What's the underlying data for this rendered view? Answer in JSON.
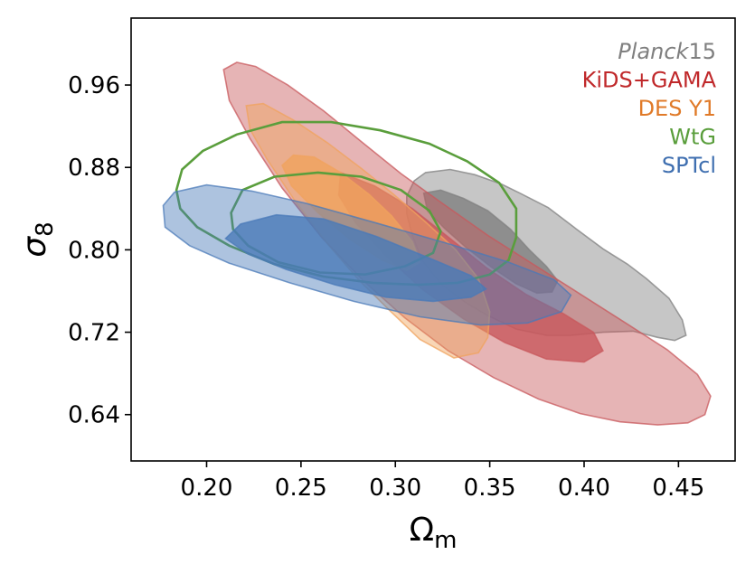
{
  "chart_data": {
    "type": "contour",
    "xlabel": "Ω",
    "xlabel_sub": "m",
    "ylabel": "σ",
    "ylabel_sub": "8",
    "xlim": [
      0.16,
      0.48
    ],
    "ylim": [
      0.595,
      1.025
    ],
    "xticks": [
      0.2,
      0.25,
      0.3,
      0.35,
      0.4,
      0.45
    ],
    "xtick_labels": [
      "0.20",
      "0.25",
      "0.30",
      "0.35",
      "0.40",
      "0.45"
    ],
    "yticks": [
      0.64,
      0.72,
      0.8,
      0.88,
      0.96
    ],
    "ytick_labels": [
      "0.64",
      "0.72",
      "0.80",
      "0.88",
      "0.96"
    ],
    "grid": false,
    "legend_position": "top-right",
    "series": [
      {
        "name": "Planck15",
        "italic_part": "Planck",
        "suffix": "15",
        "color": "#808080",
        "label_color": "#7f7f7f",
        "filled": true,
        "contours": [
          {
            "level": "95%",
            "points": [
              [
                0.31,
                0.867
              ],
              [
                0.316,
                0.875
              ],
              [
                0.329,
                0.878
              ],
              [
                0.342,
                0.873
              ],
              [
                0.356,
                0.864
              ],
              [
                0.366,
                0.855
              ],
              [
                0.381,
                0.841
              ],
              [
                0.396,
                0.82
              ],
              [
                0.41,
                0.801
              ],
              [
                0.423,
                0.786
              ],
              [
                0.433,
                0.772
              ],
              [
                0.445,
                0.753
              ],
              [
                0.452,
                0.732
              ],
              [
                0.454,
                0.717
              ],
              [
                0.448,
                0.712
              ],
              [
                0.439,
                0.715
              ],
              [
                0.426,
                0.721
              ],
              [
                0.41,
                0.72
              ],
              [
                0.393,
                0.717
              ],
              [
                0.38,
                0.717
              ],
              [
                0.364,
                0.723
              ],
              [
                0.348,
                0.737
              ],
              [
                0.337,
                0.749
              ],
              [
                0.324,
                0.767
              ],
              [
                0.314,
                0.79
              ],
              [
                0.309,
                0.814
              ],
              [
                0.306,
                0.835
              ],
              [
                0.306,
                0.852
              ],
              [
                0.31,
                0.867
              ]
            ]
          },
          {
            "level": "68%",
            "points": [
              [
                0.315,
                0.855
              ],
              [
                0.324,
                0.858
              ],
              [
                0.336,
                0.85
              ],
              [
                0.349,
                0.838
              ],
              [
                0.361,
                0.82
              ],
              [
                0.371,
                0.8
              ],
              [
                0.38,
                0.784
              ],
              [
                0.386,
                0.77
              ],
              [
                0.383,
                0.759
              ],
              [
                0.375,
                0.758
              ],
              [
                0.364,
                0.767
              ],
              [
                0.351,
                0.783
              ],
              [
                0.337,
                0.803
              ],
              [
                0.326,
                0.821
              ],
              [
                0.317,
                0.838
              ],
              [
                0.315,
                0.855
              ]
            ]
          }
        ]
      },
      {
        "name": "KiDS+GAMA",
        "color": "#c8585c",
        "label_color": "#c0292b",
        "filled": true,
        "contours": [
          {
            "level": "95%",
            "points": [
              [
                0.209,
                0.975
              ],
              [
                0.216,
                0.982
              ],
              [
                0.226,
                0.978
              ],
              [
                0.243,
                0.96
              ],
              [
                0.262,
                0.935
              ],
              [
                0.282,
                0.905
              ],
              [
                0.303,
                0.874
              ],
              [
                0.325,
                0.845
              ],
              [
                0.349,
                0.814
              ],
              [
                0.373,
                0.786
              ],
              [
                0.398,
                0.757
              ],
              [
                0.422,
                0.729
              ],
              [
                0.444,
                0.703
              ],
              [
                0.46,
                0.679
              ],
              [
                0.467,
                0.658
              ],
              [
                0.464,
                0.64
              ],
              [
                0.455,
                0.632
              ],
              [
                0.439,
                0.63
              ],
              [
                0.419,
                0.633
              ],
              [
                0.398,
                0.641
              ],
              [
                0.376,
                0.655
              ],
              [
                0.352,
                0.676
              ],
              [
                0.328,
                0.702
              ],
              [
                0.305,
                0.734
              ],
              [
                0.283,
                0.77
              ],
              [
                0.261,
                0.812
              ],
              [
                0.24,
                0.86
              ],
              [
                0.223,
                0.908
              ],
              [
                0.212,
                0.945
              ],
              [
                0.209,
                0.975
              ]
            ]
          },
          {
            "level": "68%",
            "points": [
              [
                0.271,
                0.875
              ],
              [
                0.289,
                0.862
              ],
              [
                0.309,
                0.84
              ],
              [
                0.329,
                0.811
              ],
              [
                0.348,
                0.783
              ],
              [
                0.369,
                0.757
              ],
              [
                0.389,
                0.738
              ],
              [
                0.405,
                0.72
              ],
              [
                0.41,
                0.702
              ],
              [
                0.4,
                0.691
              ],
              [
                0.38,
                0.694
              ],
              [
                0.358,
                0.71
              ],
              [
                0.336,
                0.733
              ],
              [
                0.314,
                0.762
              ],
              [
                0.295,
                0.794
              ],
              [
                0.279,
                0.826
              ],
              [
                0.27,
                0.853
              ],
              [
                0.271,
                0.875
              ]
            ]
          }
        ]
      },
      {
        "name": "DES Y1",
        "color": "#f0a35e",
        "label_color": "#e07a28",
        "filled": true,
        "contours": [
          {
            "level": "95%",
            "points": [
              [
                0.221,
                0.94
              ],
              [
                0.23,
                0.942
              ],
              [
                0.246,
                0.926
              ],
              [
                0.264,
                0.904
              ],
              [
                0.282,
                0.879
              ],
              [
                0.299,
                0.854
              ],
              [
                0.316,
                0.827
              ],
              [
                0.332,
                0.8
              ],
              [
                0.344,
                0.772
              ],
              [
                0.35,
                0.74
              ],
              [
                0.349,
                0.715
              ],
              [
                0.344,
                0.7
              ],
              [
                0.331,
                0.695
              ],
              [
                0.313,
                0.713
              ],
              [
                0.297,
                0.741
              ],
              [
                0.281,
                0.77
              ],
              [
                0.264,
                0.806
              ],
              [
                0.247,
                0.847
              ],
              [
                0.232,
                0.888
              ],
              [
                0.223,
                0.917
              ],
              [
                0.221,
                0.94
              ]
            ]
          },
          {
            "level": "68%",
            "points": [
              [
                0.24,
                0.882
              ],
              [
                0.246,
                0.892
              ],
              [
                0.257,
                0.89
              ],
              [
                0.271,
                0.875
              ],
              [
                0.286,
                0.854
              ],
              [
                0.298,
                0.833
              ],
              [
                0.309,
                0.808
              ],
              [
                0.313,
                0.788
              ],
              [
                0.306,
                0.78
              ],
              [
                0.293,
                0.79
              ],
              [
                0.276,
                0.81
              ],
              [
                0.259,
                0.836
              ],
              [
                0.245,
                0.862
              ],
              [
                0.24,
                0.882
              ]
            ]
          }
        ]
      },
      {
        "name": "WtG",
        "color": "#5a9e3c",
        "label_color": "#5a9e3c",
        "filled": false,
        "contours": [
          {
            "level": "95%",
            "points": [
              [
                0.184,
                0.858
              ],
              [
                0.187,
                0.878
              ],
              [
                0.198,
                0.896
              ],
              [
                0.216,
                0.912
              ],
              [
                0.24,
                0.924
              ],
              [
                0.266,
                0.924
              ],
              [
                0.292,
                0.916
              ],
              [
                0.318,
                0.903
              ],
              [
                0.338,
                0.886
              ],
              [
                0.355,
                0.865
              ],
              [
                0.364,
                0.84
              ],
              [
                0.364,
                0.812
              ],
              [
                0.36,
                0.79
              ],
              [
                0.35,
                0.776
              ],
              [
                0.333,
                0.768
              ],
              [
                0.312,
                0.766
              ],
              [
                0.288,
                0.768
              ],
              [
                0.262,
                0.774
              ],
              [
                0.236,
                0.786
              ],
              [
                0.212,
                0.804
              ],
              [
                0.195,
                0.822
              ],
              [
                0.186,
                0.84
              ],
              [
                0.184,
                0.858
              ]
            ]
          },
          {
            "level": "68%",
            "points": [
              [
                0.213,
                0.836
              ],
              [
                0.219,
                0.858
              ],
              [
                0.236,
                0.871
              ],
              [
                0.259,
                0.875
              ],
              [
                0.282,
                0.871
              ],
              [
                0.303,
                0.858
              ],
              [
                0.318,
                0.838
              ],
              [
                0.324,
                0.818
              ],
              [
                0.32,
                0.797
              ],
              [
                0.305,
                0.784
              ],
              [
                0.284,
                0.776
              ],
              [
                0.26,
                0.778
              ],
              [
                0.238,
                0.788
              ],
              [
                0.222,
                0.804
              ],
              [
                0.214,
                0.82
              ],
              [
                0.213,
                0.836
              ]
            ]
          }
        ]
      },
      {
        "name": "SPTcl",
        "color": "#4a7ab8",
        "label_color": "#3f6fb0",
        "filled": true,
        "contours": [
          {
            "level": "95%",
            "points": [
              [
                0.177,
                0.843
              ],
              [
                0.183,
                0.856
              ],
              [
                0.2,
                0.863
              ],
              [
                0.224,
                0.857
              ],
              [
                0.253,
                0.845
              ],
              [
                0.29,
                0.826
              ],
              [
                0.328,
                0.806
              ],
              [
                0.36,
                0.788
              ],
              [
                0.384,
                0.771
              ],
              [
                0.393,
                0.756
              ],
              [
                0.388,
                0.74
              ],
              [
                0.37,
                0.729
              ],
              [
                0.345,
                0.727
              ],
              [
                0.313,
                0.735
              ],
              [
                0.278,
                0.75
              ],
              [
                0.244,
                0.768
              ],
              [
                0.212,
                0.787
              ],
              [
                0.191,
                0.804
              ],
              [
                0.178,
                0.822
              ],
              [
                0.177,
                0.843
              ]
            ]
          },
          {
            "level": "68%",
            "points": [
              [
                0.21,
                0.811
              ],
              [
                0.218,
                0.825
              ],
              [
                0.237,
                0.834
              ],
              [
                0.262,
                0.83
              ],
              [
                0.29,
                0.813
              ],
              [
                0.318,
                0.792
              ],
              [
                0.34,
                0.775
              ],
              [
                0.348,
                0.762
              ],
              [
                0.34,
                0.754
              ],
              [
                0.32,
                0.75
              ],
              [
                0.295,
                0.754
              ],
              [
                0.268,
                0.766
              ],
              [
                0.242,
                0.781
              ],
              [
                0.222,
                0.796
              ],
              [
                0.21,
                0.811
              ]
            ]
          }
        ]
      }
    ]
  }
}
